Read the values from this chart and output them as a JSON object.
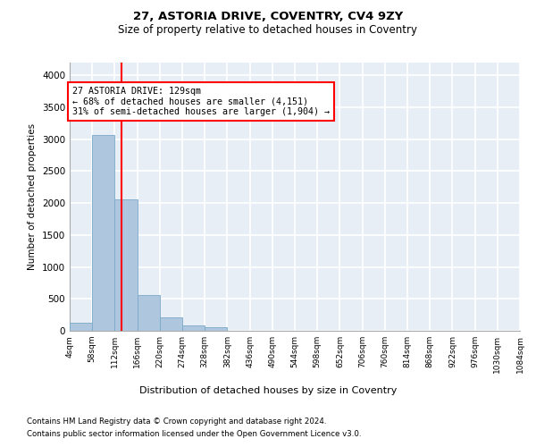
{
  "title1": "27, ASTORIA DRIVE, COVENTRY, CV4 9ZY",
  "title2": "Size of property relative to detached houses in Coventry",
  "xlabel": "Distribution of detached houses by size in Coventry",
  "ylabel": "Number of detached properties",
  "bin_edges": [
    4,
    58,
    112,
    166,
    220,
    274,
    328,
    382,
    436,
    490,
    544,
    598,
    652,
    706,
    760,
    814,
    868,
    922,
    976,
    1030,
    1084
  ],
  "bar_heights": [
    130,
    3060,
    2060,
    560,
    210,
    80,
    50,
    0,
    0,
    0,
    0,
    0,
    0,
    0,
    0,
    0,
    0,
    0,
    0,
    0
  ],
  "bar_color": "#aec6de",
  "bar_edge_color": "#7aaac8",
  "vline_x": 129,
  "vline_color": "red",
  "annotation_text": "27 ASTORIA DRIVE: 129sqm\n← 68% of detached houses are smaller (4,151)\n31% of semi-detached houses are larger (1,904) →",
  "annotation_bbox_color": "white",
  "annotation_bbox_edge": "red",
  "ylim": [
    0,
    4200
  ],
  "yticks": [
    0,
    500,
    1000,
    1500,
    2000,
    2500,
    3000,
    3500,
    4000
  ],
  "footer1": "Contains HM Land Registry data © Crown copyright and database right 2024.",
  "footer2": "Contains public sector information licensed under the Open Government Licence v3.0.",
  "bg_color": "#e8eef5",
  "grid_color": "white"
}
